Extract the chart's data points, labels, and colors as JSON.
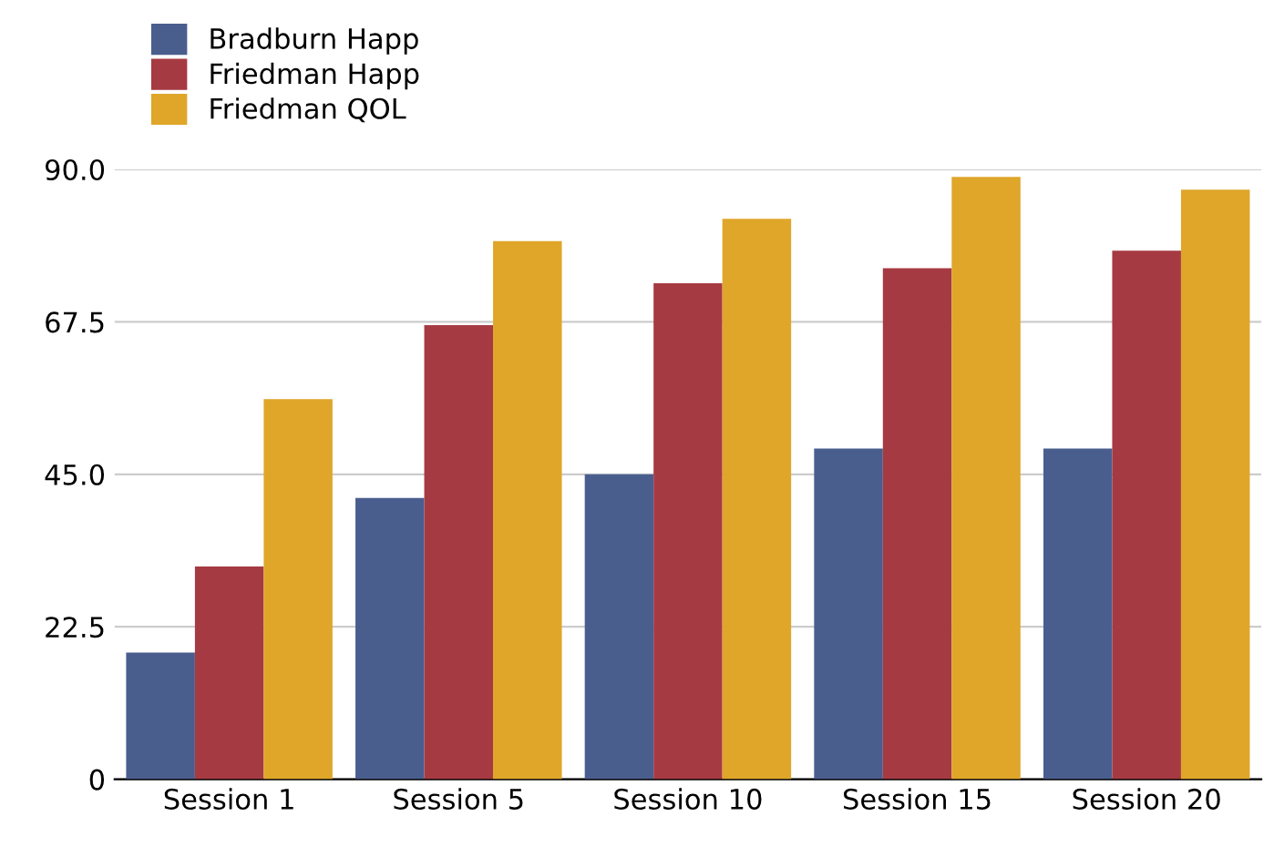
{
  "chart_data": {
    "type": "bar",
    "categories": [
      "Session 1",
      "Session 5",
      "Session 10",
      "Session 15",
      "Session 20"
    ],
    "series": [
      {
        "name": "Bradburn Happ",
        "color": "#4a5e8e",
        "values": [
          18.7,
          41.5,
          45,
          48.8,
          48.8
        ]
      },
      {
        "name": "Friedman Happ",
        "color": "#a63a42",
        "values": [
          31.4,
          67,
          73.2,
          75.4,
          78
        ]
      },
      {
        "name": "Friedman QOL",
        "color": "#dfa62a",
        "values": [
          56.1,
          79.4,
          82.7,
          88.9,
          87
        ]
      }
    ],
    "ylim": [
      0,
      90
    ],
    "yticks": [
      0,
      22.5,
      {
        "value": 45,
        "label": "45.0"
      },
      67.5,
      {
        "value": 90,
        "label": "90.0"
      }
    ],
    "grid": "y",
    "legend": "top left"
  }
}
